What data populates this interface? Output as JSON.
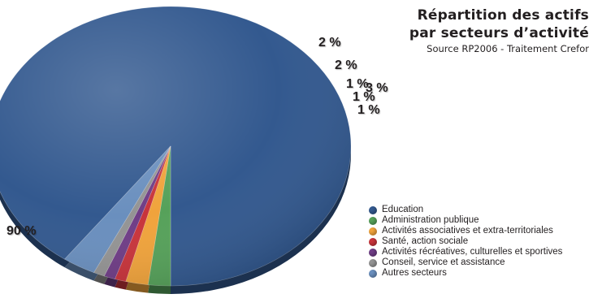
{
  "title": {
    "line1": "Répartition des actifs",
    "line2": "par secteurs d’activité",
    "source": "Source RP2006 - Traitement Crefor"
  },
  "chart_data": {
    "type": "pie",
    "style": "3d-tilted",
    "legend_position": "bottom-right",
    "slices": [
      {
        "label": "Education",
        "value": 90,
        "display": "90 %",
        "color": "#33598f"
      },
      {
        "label": "Administration publique",
        "value": 2,
        "display": "2 %",
        "color": "#56a15a"
      },
      {
        "label": "Activités associatives et extra-territoriales",
        "value": 2,
        "display": "2 %",
        "color": "#f0a33c"
      },
      {
        "label": "Santé, action sociale",
        "value": 1,
        "display": "1 %",
        "color": "#c8343b"
      },
      {
        "label": "Activités récréatives, culturelles et sportives",
        "value": 1,
        "display": "1 %",
        "color": "#6f3d86"
      },
      {
        "label": "Conseil, service et assistance",
        "value": 1,
        "display": "1 %",
        "color": "#949494"
      },
      {
        "label": "Autres secteurs",
        "value": 3,
        "display": "3 %",
        "color": "#6a8fbe"
      }
    ]
  }
}
